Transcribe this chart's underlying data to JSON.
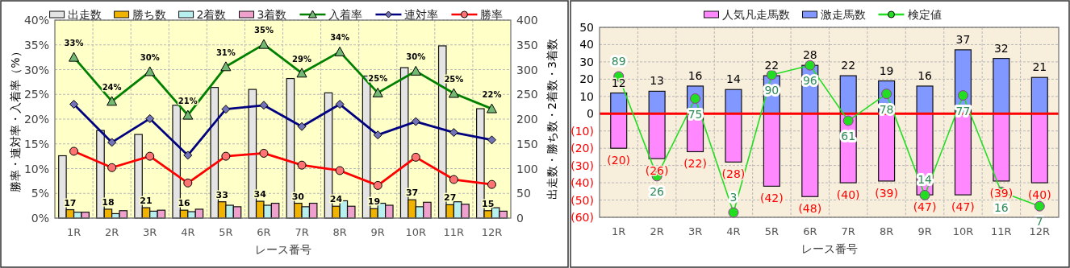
{
  "chart_data": [
    {
      "type": "bar",
      "categories": [
        "1R",
        "2R",
        "3R",
        "4R",
        "5R",
        "6R",
        "7R",
        "8R",
        "9R",
        "10R",
        "11R",
        "12R"
      ],
      "xlabel": "レース番号",
      "ylabel": "勝率・連対率・入着率（%）",
      "y2label": "出走数・勝ち数・2着数・3着数",
      "ylim": [
        0,
        40
      ],
      "yticks": [
        {
          "value": 0,
          "label": "0%"
        },
        {
          "value": 5,
          "label": "5%"
        },
        {
          "value": 10,
          "label": "10%"
        },
        {
          "value": 15,
          "label": "15%"
        },
        {
          "value": 20,
          "label": "20%"
        },
        {
          "value": 25,
          "label": "25%"
        },
        {
          "value": 30,
          "label": "30%"
        },
        {
          "value": 35,
          "label": "35%"
        },
        {
          "value": 40,
          "label": "40%"
        }
      ],
      "y2lim": [
        0,
        400
      ],
      "y2ticks": [
        0,
        50,
        100,
        150,
        200,
        250,
        300,
        350,
        400
      ],
      "grid": true,
      "legend": "top",
      "series": [
        {
          "name": "出走数",
          "axis": "y2",
          "color": "#e4e4e4",
          "values": [
            126,
            177,
            169,
            228,
            264,
            260,
            282,
            253,
            287,
            304,
            348,
            221
          ]
        },
        {
          "name": "勝ち数",
          "axis": "y2",
          "color": "#f0b400",
          "values": [
            17,
            18,
            21,
            16,
            33,
            34,
            30,
            24,
            19,
            37,
            27,
            15
          ],
          "value_labels": [
            "17",
            "18",
            "21",
            "16",
            "33",
            "34",
            "30",
            "24",
            "19",
            "37",
            "27",
            "15"
          ]
        },
        {
          "name": "2着数",
          "axis": "y2",
          "color": "#b8f0f0",
          "values": [
            12,
            9,
            14,
            13,
            26,
            26,
            23,
            35,
            30,
            23,
            33,
            21
          ]
        },
        {
          "name": "3着数",
          "axis": "y2",
          "color": "#f0a0cc",
          "values": [
            12,
            15,
            16,
            18,
            23,
            30,
            30,
            24,
            26,
            32,
            28,
            14
          ]
        },
        {
          "name": "入着率",
          "type": "line",
          "color": "#008000",
          "marker": "triangle",
          "values": [
            32.5,
            23.6,
            29.6,
            20.8,
            30.6,
            35.1,
            29.3,
            33.6,
            25.3,
            29.7,
            25.2,
            22.1
          ],
          "value_labels": [
            "33%",
            "24%",
            "30%",
            "21%",
            "31%",
            "35%",
            "29%",
            "34%",
            "25%",
            "30%",
            "25%",
            "22%"
          ]
        },
        {
          "name": "連対率",
          "type": "line",
          "color": "#000080",
          "marker": "diamond",
          "values": [
            23.0,
            15.3,
            20.1,
            12.7,
            22.0,
            22.8,
            18.5,
            23.0,
            16.8,
            19.5,
            17.3,
            15.8
          ]
        },
        {
          "name": "勝率",
          "type": "line",
          "color": "#ff0000",
          "marker": "circle",
          "values": [
            13.5,
            10.2,
            12.5,
            7.1,
            12.5,
            13.1,
            10.7,
            9.6,
            6.6,
            12.3,
            7.8,
            6.8
          ]
        }
      ]
    },
    {
      "type": "bar",
      "categories": [
        "1R",
        "2R",
        "3R",
        "4R",
        "5R",
        "6R",
        "7R",
        "8R",
        "9R",
        "10R",
        "11R",
        "12R"
      ],
      "xlabel": "レース番号",
      "stacked": true,
      "ylim": [
        -60,
        50
      ],
      "yticks": [
        50,
        40,
        30,
        20,
        10,
        0,
        {
          "value": -10,
          "label": "(10)"
        },
        {
          "value": -20,
          "label": "(20)"
        },
        {
          "value": -30,
          "label": "(30)"
        },
        {
          "value": -40,
          "label": "(40)"
        },
        {
          "value": -50,
          "label": "(50)"
        },
        {
          "value": -60,
          "label": "(60)"
        }
      ],
      "y2lim": [
        0,
        120
      ],
      "grid": true,
      "legend": "top",
      "ref_lines": [
        {
          "axis": "y",
          "value": 0,
          "color": "#ff0000"
        }
      ],
      "series": [
        {
          "name": "人気凡走馬数",
          "color": "#ff88ff",
          "values": [
            -20,
            -26,
            -22,
            -28,
            -42,
            -48,
            -40,
            -39,
            -47,
            -47,
            -39,
            -40
          ],
          "value_labels": [
            "(20)",
            "(26)",
            "(22)",
            "(28)",
            "(42)",
            "(48)",
            "(40)",
            "(39)",
            "(47)",
            "(47)",
            "(39)",
            "(40)"
          ]
        },
        {
          "name": "激走馬数",
          "color": "#8098ff",
          "values": [
            12,
            13,
            16,
            14,
            22,
            28,
            22,
            19,
            16,
            37,
            32,
            21
          ],
          "value_labels": [
            "12",
            "13",
            "16",
            "14",
            "22",
            "28",
            "22",
            "19",
            "16",
            "37",
            "32",
            "21"
          ]
        },
        {
          "name": "検定値",
          "type": "line",
          "axis": "y2",
          "color": "#22dd22",
          "marker": "circle",
          "values": [
            89,
            26,
            75,
            3,
            90,
            96,
            61,
            78,
            14,
            77,
            16,
            7
          ],
          "value_labels": [
            "89",
            "26",
            "75",
            "3",
            "90",
            "96",
            "61",
            "78",
            "14",
            "77",
            "16",
            "7"
          ]
        }
      ]
    }
  ]
}
